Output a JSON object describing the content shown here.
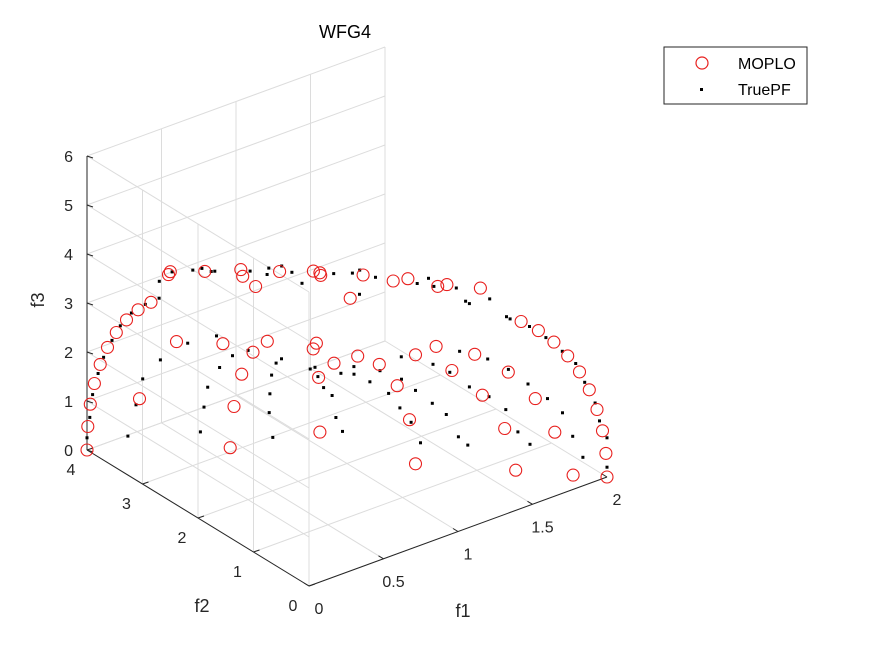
{
  "chart_data": {
    "type": "scatter",
    "title": "WFG4",
    "xlabel": "f1",
    "ylabel": "f2",
    "zlabel": "f3",
    "xlim": [
      0,
      2
    ],
    "ylim": [
      0,
      4
    ],
    "zlim": [
      0,
      6
    ],
    "x_ticks": [
      "0",
      "0.5",
      "1",
      "1.5",
      "2"
    ],
    "y_ticks": [
      "0",
      "1",
      "2",
      "3",
      "4"
    ],
    "z_ticks": [
      "0",
      "1",
      "2",
      "3",
      "4",
      "5",
      "6"
    ],
    "grid": true,
    "legend_position": "top-right",
    "series": [
      {
        "name": "MOPLO",
        "marker": "open-circle",
        "color": "#e8201e",
        "points": [
          [
            2.0,
            0.0,
            0.0
          ],
          [
            1.9925,
            0.0,
            0.4907
          ],
          [
            1.9701,
            0.0,
            0.9762
          ],
          [
            1.933,
            0.0,
            1.4511
          ],
          [
            1.8813,
            0.0,
            1.9106
          ],
          [
            1.8156,
            0.0,
            2.3497
          ],
          [
            1.7362,
            0.0,
            2.764
          ],
          [
            1.6439,
            0.0,
            3.1488
          ],
          [
            1.5393,
            0.0,
            3.5
          ],
          [
            1.4233,
            0.0,
            3.814
          ],
          [
            1.8708,
            0.2644,
            0.0
          ],
          [
            1.7969,
            0.3948,
            0.8654
          ],
          [
            1.6545,
            0.3635,
            1.732
          ],
          [
            1.4565,
            0.32,
            2.5226
          ],
          [
            1.2111,
            0.2661,
            3.1962
          ],
          [
            0.9291,
            0.2041,
            3.7156
          ],
          [
            1.6629,
            0.7408,
            0.0
          ],
          [
            1.5746,
            0.7015,
            0.9762
          ],
          [
            1.3953,
            0.6216,
            1.9106
          ],
          [
            1.1496,
            0.5122,
            2.764
          ],
          [
            0.8569,
            0.3818,
            3.5
          ],
          [
            1.2856,
            1.5321,
            0.0
          ],
          [
            1.2129,
            1.4455,
            1.0411
          ],
          [
            1.0648,
            1.269,
            2.022
          ],
          [
            0.8485,
            1.0112,
            2.8779
          ],
          [
            0.5883,
            0.7011,
            3.5514
          ],
          [
            0.3023,
            0.3603,
            3.9598
          ],
          [
            0.9363,
            2.3175,
            0.4907
          ],
          [
            0.8296,
            2.0534,
            1.9106
          ],
          [
            0.6382,
            1.5797,
            3.1488
          ],
          [
            0.3618,
            0.8956,
            3.814
          ],
          [
            0.618,
            3.0782,
            0.0
          ],
          [
            0.5883,
            2.93,
            0.9762
          ],
          [
            0.5281,
            2.6303,
            1.9106
          ],
          [
            0.4392,
            2.1876,
            2.764
          ],
          [
            0.327,
            1.6287,
            3.5
          ],
          [
            0.2442,
            3.7105,
            0.9762
          ],
          [
            0.1908,
            2.8992,
            2.764
          ],
          [
            0.124,
            1.8842,
            3.5
          ],
          [
            0.0,
            4.0,
            0.0
          ],
          [
            0.0,
            3.9851,
            0.4907
          ],
          [
            0.0,
            3.9402,
            0.9762
          ],
          [
            0.0,
            3.866,
            1.4511
          ],
          [
            0.0,
            3.7627,
            1.9106
          ],
          [
            0.0,
            3.6312,
            2.3497
          ],
          [
            0.0,
            3.4725,
            2.764
          ],
          [
            0.0,
            3.2879,
            3.1488
          ],
          [
            0.0,
            3.0786,
            3.5
          ],
          [
            0.0,
            2.8466,
            3.814
          ],
          [
            0.0,
            2.5,
            4.68
          ],
          [
            0.12,
            2.2,
            4.76
          ],
          [
            0.25,
            1.9,
            4.86
          ],
          [
            0.38,
            1.55,
            4.92
          ],
          [
            0.52,
            1.2,
            4.98
          ],
          [
            0.68,
            0.85,
            5.0
          ],
          [
            0.85,
            0.5,
            4.98
          ],
          [
            1.0,
            0.2,
            4.9
          ],
          [
            1.15,
            0.0,
            4.8
          ],
          [
            0.3,
            2.0,
            4.6
          ],
          [
            0.6,
            1.4,
            4.7
          ],
          [
            0.9,
            0.9,
            4.6
          ],
          [
            0.2,
            1.5,
            4.85
          ],
          [
            0.5,
            0.6,
            4.9
          ],
          [
            0.7,
            1.8,
            4.4
          ],
          [
            0.1,
            2.8,
            4.3
          ],
          [
            1.05,
            0.5,
            4.6
          ]
        ]
      },
      {
        "name": "TruePF",
        "marker": "dot",
        "color": "#000000",
        "points": [
          [
            2.0,
            0.0,
            0.2
          ],
          [
            2.0,
            0.0,
            0.8
          ],
          [
            1.95,
            0.0,
            1.2
          ],
          [
            1.92,
            0.0,
            1.6
          ],
          [
            1.85,
            0.0,
            2.1
          ],
          [
            1.79,
            0.0,
            2.55
          ],
          [
            1.7,
            0.0,
            2.9
          ],
          [
            1.59,
            0.0,
            3.3
          ],
          [
            1.48,
            0.0,
            3.65
          ],
          [
            1.35,
            0.0,
            3.95
          ],
          [
            1.95,
            0.3,
            0.25
          ],
          [
            1.9,
            0.35,
            0.7
          ],
          [
            1.85,
            0.4,
            1.2
          ],
          [
            1.75,
            0.4,
            1.6
          ],
          [
            1.6,
            0.35,
            2.1
          ],
          [
            1.45,
            0.3,
            2.6
          ],
          [
            1.3,
            0.27,
            3.0
          ],
          [
            1.1,
            0.24,
            3.4
          ],
          [
            1.8,
            0.85,
            0.3
          ],
          [
            1.7,
            0.8,
            0.7
          ],
          [
            1.6,
            0.75,
            1.3
          ],
          [
            1.45,
            0.65,
            1.8
          ],
          [
            1.3,
            0.6,
            2.2
          ],
          [
            1.15,
            0.55,
            2.7
          ],
          [
            1.0,
            0.45,
            3.1
          ],
          [
            0.75,
            0.35,
            3.6
          ],
          [
            1.55,
            1.3,
            0.25
          ],
          [
            1.45,
            1.2,
            0.6
          ],
          [
            1.35,
            1.15,
            1.2
          ],
          [
            1.2,
            1.0,
            1.7
          ],
          [
            1.05,
            0.9,
            2.2
          ],
          [
            0.9,
            0.75,
            2.7
          ],
          [
            0.7,
            0.6,
            3.2
          ],
          [
            0.45,
            0.4,
            3.7
          ],
          [
            1.4,
            1.75,
            0.15
          ],
          [
            1.3,
            1.65,
            0.75
          ],
          [
            1.15,
            1.45,
            1.35
          ],
          [
            1.0,
            1.25,
            1.95
          ],
          [
            0.8,
            1.05,
            2.55
          ],
          [
            0.6,
            0.8,
            3.1
          ],
          [
            0.4,
            0.5,
            3.55
          ],
          [
            1.1,
            2.35,
            0.3
          ],
          [
            1.0,
            2.2,
            0.8
          ],
          [
            0.9,
            2.0,
            1.5
          ],
          [
            0.75,
            1.75,
            2.0
          ],
          [
            0.6,
            1.45,
            2.6
          ],
          [
            0.45,
            1.1,
            3.2
          ],
          [
            0.25,
            0.65,
            3.7
          ],
          [
            0.8,
            2.8,
            0.2
          ],
          [
            0.72,
            2.65,
            0.9
          ],
          [
            0.65,
            2.45,
            1.5
          ],
          [
            0.55,
            2.15,
            2.2
          ],
          [
            0.45,
            1.8,
            2.8
          ],
          [
            0.3,
            1.3,
            3.4
          ],
          [
            0.5,
            3.3,
            0.3
          ],
          [
            0.45,
            3.1,
            1.0
          ],
          [
            0.4,
            2.9,
            1.6
          ],
          [
            0.35,
            2.55,
            2.3
          ],
          [
            0.25,
            2.05,
            3.0
          ],
          [
            0.15,
            1.5,
            3.6
          ],
          [
            0.2,
            3.8,
            0.2
          ],
          [
            0.18,
            3.6,
            1.0
          ],
          [
            0.15,
            3.4,
            1.7
          ],
          [
            0.12,
            3.0,
            2.4
          ],
          [
            0.08,
            2.4,
            3.2
          ],
          [
            0.05,
            1.8,
            3.8
          ],
          [
            0.0,
            4.0,
            0.25
          ],
          [
            0.0,
            3.95,
            0.7
          ],
          [
            0.0,
            3.9,
            1.2
          ],
          [
            0.0,
            3.8,
            1.7
          ],
          [
            0.0,
            3.7,
            2.1
          ],
          [
            0.0,
            3.55,
            2.55
          ],
          [
            0.0,
            3.4,
            2.95
          ],
          [
            0.0,
            3.2,
            3.35
          ],
          [
            0.0,
            2.95,
            3.7
          ],
          [
            0.0,
            2.7,
            4.0
          ],
          [
            0.05,
            2.6,
            4.55
          ],
          [
            0.2,
            2.3,
            4.6
          ],
          [
            0.35,
            2.0,
            4.65
          ],
          [
            0.5,
            1.65,
            4.7
          ],
          [
            0.65,
            1.3,
            4.75
          ],
          [
            0.8,
            0.95,
            4.75
          ],
          [
            0.95,
            0.6,
            4.7
          ],
          [
            1.1,
            0.3,
            4.65
          ],
          [
            1.25,
            0.1,
            4.4
          ],
          [
            0.15,
            2.1,
            4.8
          ],
          [
            0.45,
            1.7,
            4.85
          ],
          [
            0.75,
            1.1,
            4.85
          ],
          [
            0.4,
            1.2,
            4.9
          ],
          [
            0.25,
            2.6,
            4.4
          ],
          [
            0.95,
            0.3,
            4.85
          ],
          [
            0.6,
            0.7,
            4.8
          ],
          [
            1.1,
            0.8,
            4.5
          ],
          [
            1.2,
            0.4,
            4.2
          ],
          [
            0.3,
            2.9,
            4.1
          ],
          [
            0.85,
            1.5,
            4.4
          ],
          [
            0.55,
            2.2,
            4.35
          ],
          [
            1.3,
            0.6,
            3.9
          ],
          [
            0.15,
            3.1,
            3.9
          ],
          [
            1.4,
            0.2,
            3.8
          ],
          [
            0.65,
            2.5,
            3.9
          ]
        ]
      }
    ]
  }
}
